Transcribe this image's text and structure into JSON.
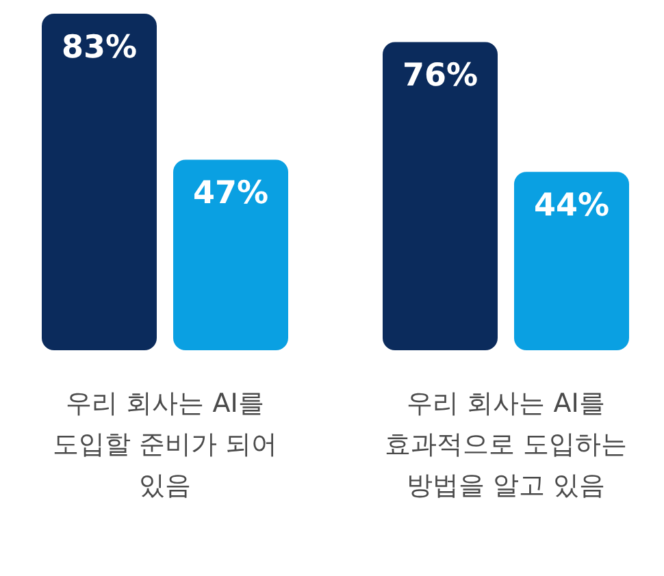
{
  "chart_data": {
    "type": "bar",
    "categories": [
      "우리 회사는 AI를 도입할 준비가 되어 있음",
      "우리 회사는 AI를 효과적으로 도입하는 방법을 알고 있음"
    ],
    "series": [
      {
        "color": "#0b2b5c",
        "values": [
          83,
          76
        ],
        "value_labels": [
          "83%",
          "76%"
        ]
      },
      {
        "color": "#0aa0e2",
        "values": [
          47,
          44
        ],
        "value_labels": [
          "47%",
          "44%"
        ]
      }
    ]
  }
}
